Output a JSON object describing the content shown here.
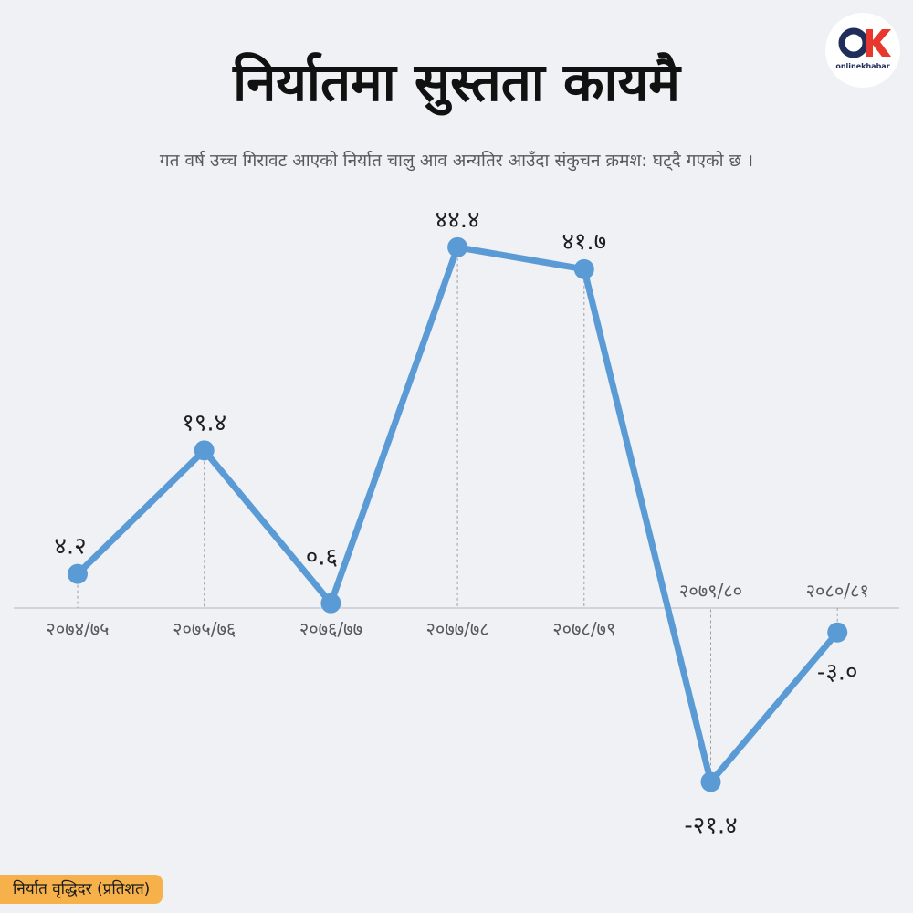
{
  "header": {
    "title": "निर्यातमा सुस्तता कायमै",
    "subtitle": "गत वर्ष उच्च गिरावट आएको निर्यात चालु आव अन्यतिर आउँदा संकुचन क्रमश: घट्‌दै गएको छ ।"
  },
  "logo": {
    "brand": "onlinekhabar",
    "icon": "ok-logo-icon"
  },
  "footer": {
    "label": "निर्यात वृद्धिदर  (प्रतिशत)"
  },
  "colors": {
    "line": "#5b9bd5",
    "background": "#eff1f5",
    "footer_badge": "#f7b14a",
    "logo_red": "#e8372d",
    "logo_navy": "#1f2d5a"
  },
  "chart_data": {
    "type": "line",
    "categories": [
      "२०७४/७५",
      "२०७५/७६",
      "२०७६/७७",
      "२०७७/७८",
      "२०७८/७९",
      "२०७९/८०",
      "२०८०/८१"
    ],
    "values": [
      4.2,
      19.4,
      0.6,
      44.4,
      41.7,
      -21.4,
      -3.0
    ],
    "value_labels": [
      "४.२",
      "१९.४",
      "०.६",
      "४४.४",
      "४१.७",
      "-२१.४",
      "-३.०"
    ],
    "ylabel": "निर्यात वृद्धिदर  (प्रतिशत)",
    "ylim": [
      -25,
      50
    ],
    "grid": false,
    "legend": "none"
  }
}
